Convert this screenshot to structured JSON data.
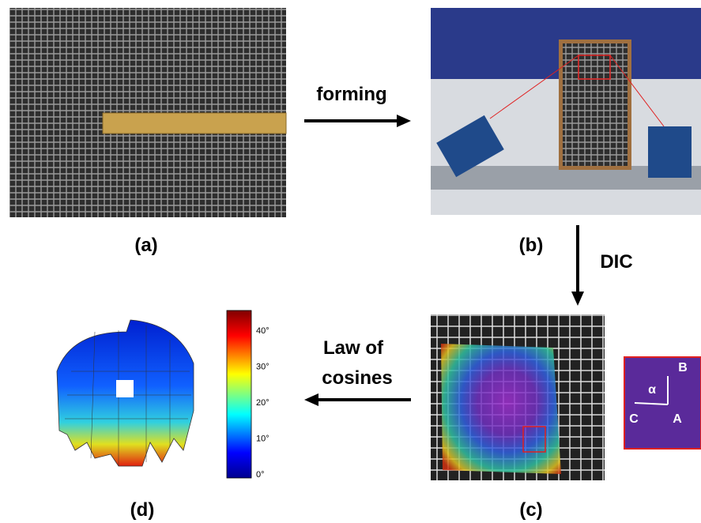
{
  "steps": {
    "forming": "forming",
    "dic": "DIC",
    "law_line1": "Law of",
    "law_line2": "cosines"
  },
  "panels": {
    "a": "(a)",
    "b": "(b)",
    "c": "(c)",
    "d": "(d)"
  },
  "colorbar": {
    "labels": [
      "0°",
      "10°",
      "20°",
      "30°",
      "40°"
    ]
  },
  "inset": {
    "b": "B",
    "alpha": "α",
    "c": "C",
    "a": "A"
  }
}
